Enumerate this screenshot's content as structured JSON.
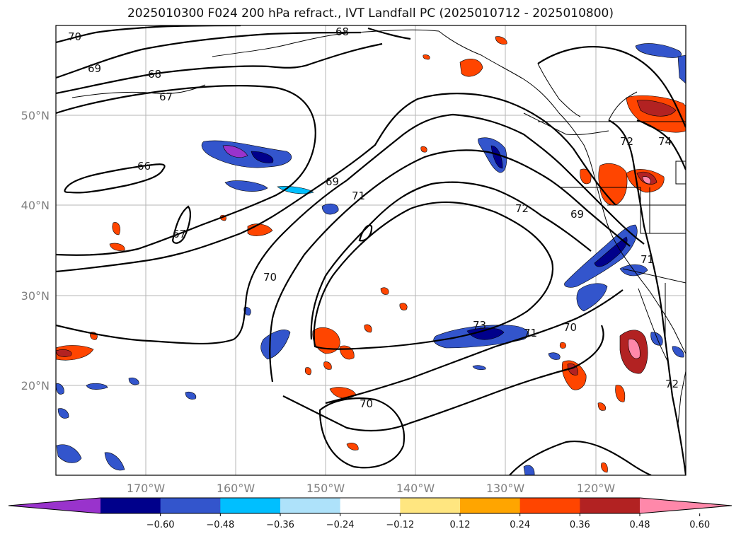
{
  "title": "2025010300 F024 200 hPa refract., IVT Landfall PC (2025010712 - 2025010800)",
  "lat_labels": [
    "50°N",
    "40°N",
    "30°N",
    "20°N"
  ],
  "lon_labels": [
    "170°W",
    "160°W",
    "150°W",
    "140°W",
    "130°W",
    "120°W"
  ],
  "contour_labels": [
    "70",
    "68",
    "69",
    "68",
    "67",
    "66",
    "67",
    "69",
    "71",
    "72",
    "69",
    "70",
    "73",
    "71",
    "70",
    "70",
    "71",
    "72",
    "72",
    "74"
  ],
  "colorbar": {
    "ticks": [
      "−0.60",
      "−0.48",
      "−0.36",
      "−0.24",
      "−0.12",
      "0.12",
      "0.24",
      "0.36",
      "0.48",
      "0.60"
    ],
    "colors": [
      "#9933cc",
      "#00008b",
      "#3355cc",
      "#00bfff",
      "#aee2fa",
      "#ffffff",
      "#ffe680",
      "#ffa500",
      "#ff4500",
      "#b22222",
      "#ff88aa"
    ]
  }
}
